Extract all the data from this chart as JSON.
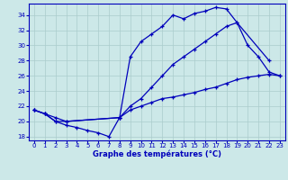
{
  "title": "Graphe des températures (°C)",
  "background_color": "#cce8e8",
  "line_color": "#0000bb",
  "grid_color": "#aacccc",
  "xlim": [
    -0.5,
    23.5
  ],
  "ylim": [
    17.5,
    35.5
  ],
  "xticks": [
    0,
    1,
    2,
    3,
    4,
    5,
    6,
    7,
    8,
    9,
    10,
    11,
    12,
    13,
    14,
    15,
    16,
    17,
    18,
    19,
    20,
    21,
    22,
    23
  ],
  "yticks": [
    18,
    20,
    22,
    24,
    26,
    28,
    30,
    32,
    34
  ],
  "series": [
    {
      "x": [
        0,
        1,
        2,
        3,
        8,
        9,
        10,
        11,
        12,
        13,
        14,
        15,
        16,
        17,
        18,
        19,
        22
      ],
      "y": [
        21.5,
        21.0,
        20.5,
        20.0,
        20.5,
        28.5,
        30.5,
        31.5,
        32.5,
        34.0,
        33.5,
        34.2,
        34.5,
        35.0,
        34.8,
        33.0,
        28.0
      ]
    },
    {
      "x": [
        0,
        1,
        2,
        3,
        8,
        9,
        10,
        11,
        12,
        13,
        14,
        15,
        16,
        17,
        18,
        19,
        20,
        21,
        22,
        23
      ],
      "y": [
        21.5,
        21.0,
        20.0,
        20.0,
        20.5,
        22.0,
        23.0,
        24.5,
        26.0,
        27.5,
        28.5,
        29.5,
        30.5,
        31.5,
        32.5,
        33.0,
        30.0,
        28.5,
        26.5,
        26.0
      ]
    },
    {
      "x": [
        0,
        1,
        2,
        3,
        4,
        5,
        6,
        7,
        8,
        9,
        10,
        11,
        12,
        13,
        14,
        15,
        16,
        17,
        18,
        19,
        20,
        21,
        22,
        23
      ],
      "y": [
        21.5,
        21.0,
        20.0,
        19.5,
        19.2,
        18.8,
        18.5,
        18.0,
        20.5,
        21.5,
        22.0,
        22.5,
        23.0,
        23.2,
        23.5,
        23.8,
        24.2,
        24.5,
        25.0,
        25.5,
        25.8,
        26.0,
        26.2,
        26.0
      ]
    }
  ]
}
